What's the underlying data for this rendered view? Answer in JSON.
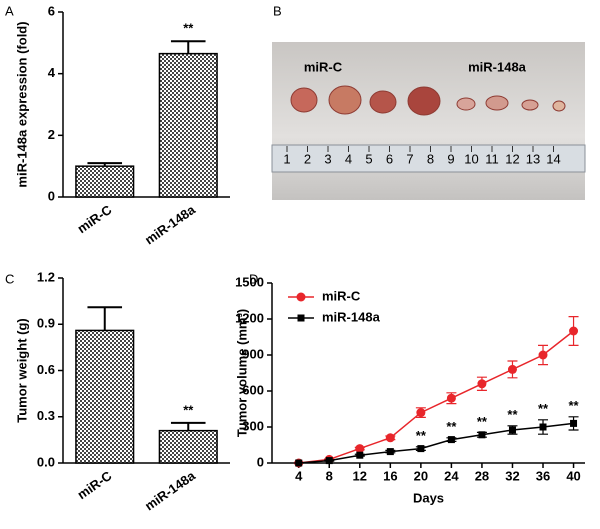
{
  "chart_data": [
    {
      "type": "bar",
      "panel": "A",
      "ylabel": "miR-148a expression (fold)",
      "categories": [
        "miR-C",
        "miR-148a"
      ],
      "values": [
        1.0,
        4.65
      ],
      "errors": [
        0.1,
        0.4
      ],
      "annotations": [
        null,
        "**"
      ],
      "color": "#000000",
      "hatch": true,
      "ylim": [
        0,
        6
      ],
      "yticks": [
        0,
        2,
        4,
        6
      ]
    },
    {
      "type": "bar",
      "panel": "C",
      "ylabel": "Tumor weight (g)",
      "categories": [
        "miR-C",
        "miR-148a"
      ],
      "values": [
        0.86,
        0.21
      ],
      "errors": [
        0.15,
        0.05
      ],
      "annotations": [
        null,
        "**"
      ],
      "color": "#000000",
      "hatch": true,
      "ylim": [
        0,
        1.2
      ],
      "yticks": [
        {
          "value": 0,
          "label": "0.0"
        },
        0.3,
        0.6,
        0.9,
        1.2
      ]
    },
    {
      "type": "line",
      "panel": "D",
      "ylabel": "Tumor volume (mm³)",
      "xlabel": "Days",
      "x": [
        4,
        8,
        12,
        16,
        20,
        24,
        28,
        32,
        36,
        40
      ],
      "series": [
        {
          "name": "miR-C",
          "color": "#e8262b",
          "marker": "circle",
          "values": [
            0,
            30,
            120,
            210,
            420,
            540,
            660,
            780,
            900,
            1100
          ],
          "errors": [
            0,
            5,
            10,
            15,
            40,
            45,
            55,
            70,
            80,
            120
          ]
        },
        {
          "name": "miR-148a",
          "color": "#000000",
          "marker": "square",
          "values": [
            0,
            20,
            65,
            95,
            120,
            195,
            235,
            275,
            300,
            330
          ],
          "errors": [
            0,
            5,
            8,
            10,
            15,
            15,
            20,
            35,
            60,
            55
          ]
        }
      ],
      "significance": [
        null,
        null,
        null,
        null,
        "**",
        "**",
        "**",
        "**",
        "**",
        "**"
      ],
      "xlim": [
        0.5,
        41.5
      ],
      "xticks": [
        4,
        8,
        12,
        16,
        20,
        24,
        28,
        32,
        36,
        40
      ],
      "ylim": [
        0,
        1500
      ],
      "yticks": [
        0,
        300,
        600,
        900,
        1200,
        1500
      ]
    }
  ],
  "photo": {
    "panel": "B",
    "labels": [
      "miR-C",
      "miR-148a"
    ],
    "ruler": [
      "1",
      "2",
      "3",
      "4",
      "5",
      "6",
      "7",
      "8",
      "9",
      "10",
      "11",
      "12",
      "13",
      "14"
    ]
  }
}
